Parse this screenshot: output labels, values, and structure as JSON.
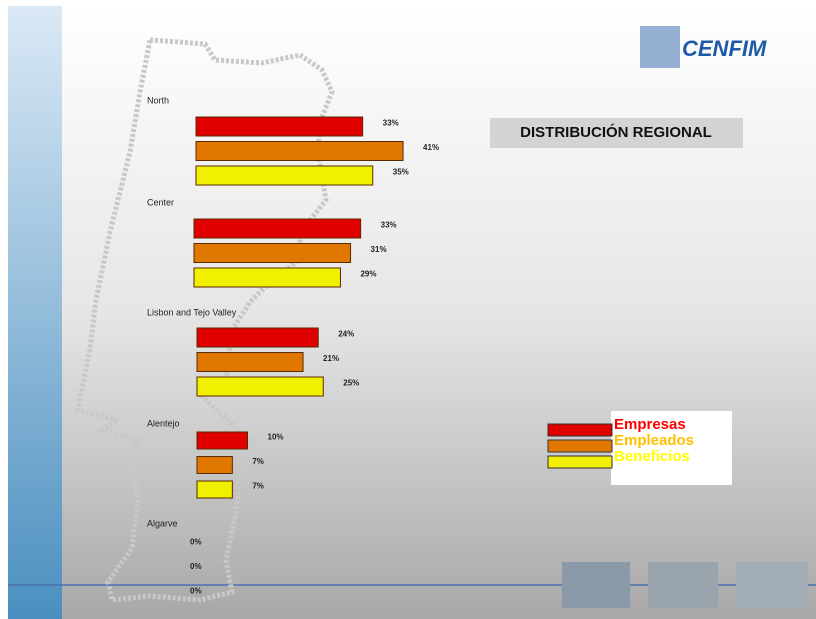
{
  "logo": "CENFIM",
  "chart_data": {
    "type": "bar",
    "orientation": "horizontal",
    "title": "DISTRIBUCIÓN REGIONAL",
    "categories": [
      "North",
      "Center",
      "Lisbon and Tejo Valley",
      "Alentejo",
      "Algarve"
    ],
    "series": [
      {
        "name": "Empresas",
        "color": "#e00000",
        "legend_color": "#ff0000",
        "values": [
          33,
          33,
          24,
          10,
          0
        ],
        "value_labels": [
          "33%",
          "33%",
          "24%",
          "10%",
          "0%"
        ]
      },
      {
        "name": "Empleados",
        "color": "#e07800",
        "legend_color": "#ffc000",
        "values": [
          41,
          31,
          21,
          7,
          0
        ],
        "value_labels": [
          "41%",
          "31%",
          "21%",
          "7%",
          "0%"
        ]
      },
      {
        "name": "Beneficios",
        "color": "#f0f000",
        "legend_color": "#ffff00",
        "values": [
          35,
          29,
          25,
          7,
          0
        ],
        "value_labels": [
          "35%",
          "29%",
          "25%",
          "7%",
          "0%"
        ]
      }
    ]
  }
}
